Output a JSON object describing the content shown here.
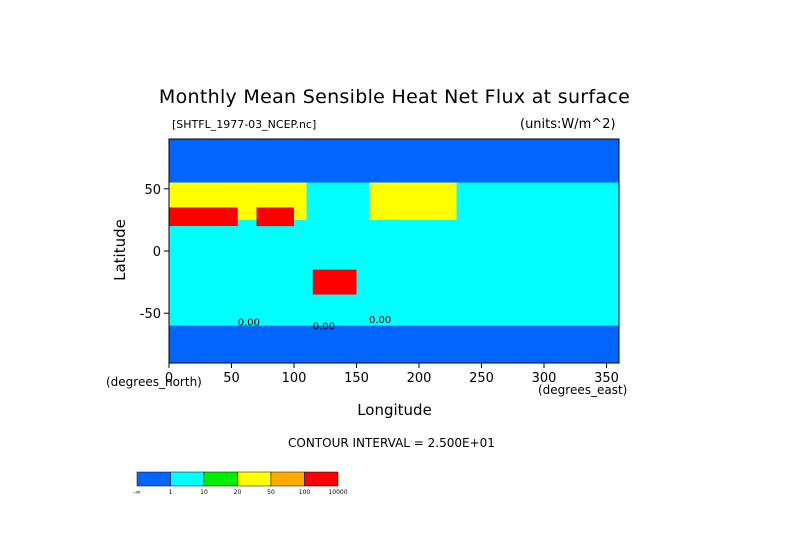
{
  "chart_data": {
    "type": "heatmap",
    "title": "Monthly Mean Sensible Heat Net Flux at surface",
    "file_label": "[SHTFL_1977-03_NCEP.nc]",
    "units_label": "(units:W/m^2)",
    "xlabel": "Longitude",
    "ylabel": "Latitude",
    "x_unit_label": "(degrees_east)",
    "y_unit_label": "(degrees_north)",
    "xlim": [
      0,
      360
    ],
    "ylim": [
      -90,
      90
    ],
    "x_ticks": [
      0,
      50,
      100,
      150,
      200,
      250,
      300,
      350
    ],
    "y_ticks": [
      50,
      0,
      -50
    ],
    "contour_interval_label": "CONTOUR INTERVAL = 2.500E+01",
    "contour_labels": [
      "0.00",
      "0.00",
      "0.00"
    ],
    "colorbar": {
      "colors": [
        "#0066ff",
        "#00ffff",
        "#00ee00",
        "#ffff00",
        "#ffaa00",
        "#ff0000"
      ],
      "labels": [
        "-∞",
        "1",
        "10",
        "20",
        "50",
        "100",
        "10000"
      ]
    },
    "regions": [
      {
        "lat": [
          55,
          90
        ],
        "lon": [
          0,
          360
        ],
        "level": 0
      },
      {
        "lat": [
          25,
          55
        ],
        "lon": [
          160,
          230
        ],
        "level": 3
      },
      {
        "lat": [
          25,
          55
        ],
        "lon": [
          0,
          110
        ],
        "level": 3
      },
      {
        "lat": [
          20,
          35
        ],
        "lon": [
          0,
          55
        ],
        "level": 5
      },
      {
        "lat": [
          5,
          35
        ],
        "lon": [
          70,
          100
        ],
        "level": 5
      },
      {
        "lat": [
          -10,
          20
        ],
        "lon": [
          0,
          360
        ],
        "level": 1
      },
      {
        "lat": [
          -50,
          -10
        ],
        "lon": [
          0,
          360
        ],
        "level": 1
      },
      {
        "lat": [
          -35,
          -15
        ],
        "lon": [
          115,
          150
        ],
        "level": 5
      },
      {
        "lat": [
          -90,
          -60
        ],
        "lon": [
          0,
          360
        ],
        "level": 0
      }
    ]
  }
}
